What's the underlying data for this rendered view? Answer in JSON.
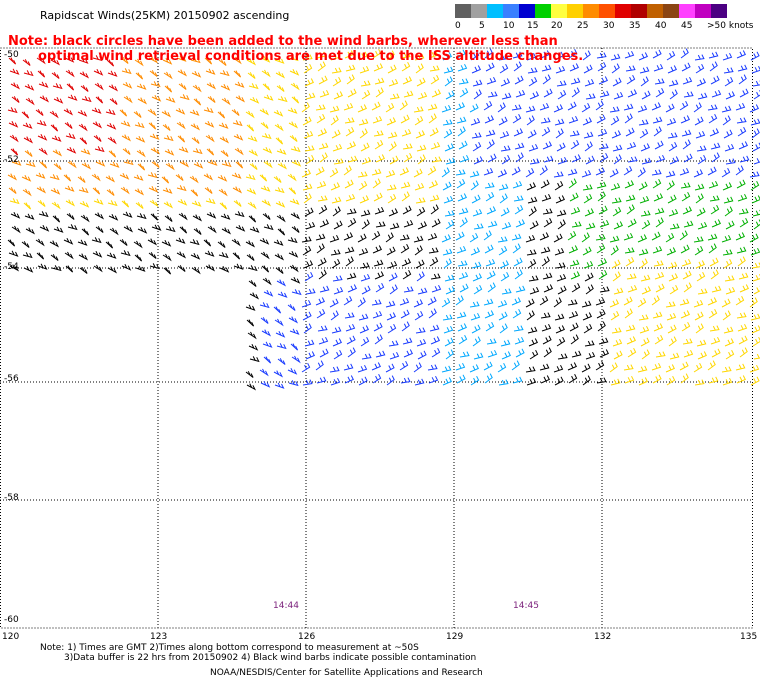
{
  "title": "Rapidscat Winds(25KM) 20150902 ascending",
  "legend": {
    "colors": [
      "#606060",
      "#a0a0a0",
      "#00bfff",
      "#3a80ff",
      "#0000d0",
      "#00d000",
      "#ffff40",
      "#ffd000",
      "#ff8c00",
      "#ff5000",
      "#e00000",
      "#b00000",
      "#c06000",
      "#8b4513",
      "#ff40ff",
      "#c000c0",
      "#4b0082"
    ],
    "labels": [
      "0",
      "5",
      "10",
      "15",
      "20",
      "25",
      "30",
      "35",
      "40",
      "45",
      ">50 knots"
    ]
  },
  "note": {
    "line1": "Note: black circles have been added to the wind barbs, wherever less than",
    "line2": "optimal wind retrieval conditions are met due to the ISS altitude changes."
  },
  "lat_labels": [
    "-50",
    "-52",
    "-54",
    "-56",
    "-58",
    "-60"
  ],
  "lon_labels": [
    "120",
    "123",
    "126",
    "129",
    "132",
    "135"
  ],
  "time_labels": [
    "14:44",
    "14:45"
  ],
  "footer": {
    "line1": "Note: 1) Times are GMT 2)Times along bottom correspond to measurement at ~50S",
    "line2": "3)Data buffer is 22 hrs from 20150902 4) Black wind barbs indicate possible contamination",
    "line3": "NOAA/NESDIS/Center for Satellite Applications and Research"
  }
}
